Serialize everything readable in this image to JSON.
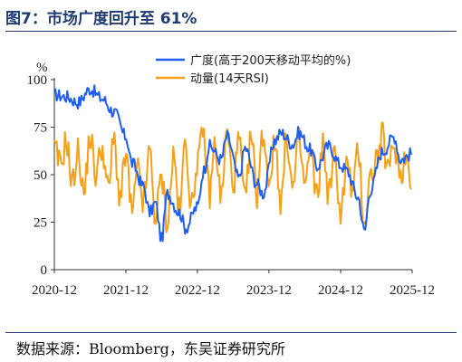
{
  "title": "图7：市场广度回升至 61%",
  "source": "数据来源：Bloomberg，东吴证券研究所",
  "chart_data": {
    "type": "line",
    "ylabel": "%",
    "ylim": [
      0,
      100
    ],
    "yticks": [
      "0",
      "25",
      "50",
      "75",
      "100"
    ],
    "xticks": [
      "2020-12",
      "2021-12",
      "2022-12",
      "2023-12",
      "2024-12",
      "2025-12"
    ],
    "colors": {
      "breadth": "#1f5ff0",
      "momentum": "#f5a01a"
    },
    "series": [
      {
        "name": "广度(高于200天移动平均的%)",
        "x": [
          "2020-12",
          "2021-02",
          "2021-04",
          "2021-06",
          "2021-08",
          "2021-10",
          "2021-12",
          "2022-01",
          "2022-03",
          "2022-04",
          "2022-05",
          "2022-06",
          "2022-07",
          "2022-09",
          "2022-10",
          "2022-12",
          "2023-01",
          "2023-02",
          "2023-04",
          "2023-05",
          "2023-07",
          "2023-08",
          "2023-10",
          "2023-11",
          "2024-01",
          "2024-02",
          "2024-04",
          "2024-05",
          "2024-07",
          "2024-08",
          "2024-10",
          "2024-12",
          "2025-01",
          "2025-03",
          "2025-04",
          "2025-05",
          "2025-07",
          "2025-09",
          "2025-10",
          "2025-12"
        ],
        "values": [
          92,
          91,
          88,
          95,
          90,
          83,
          70,
          56,
          44,
          30,
          35,
          16,
          40,
          30,
          22,
          33,
          52,
          65,
          58,
          70,
          48,
          64,
          45,
          40,
          68,
          72,
          66,
          72,
          63,
          54,
          65,
          55,
          52,
          38,
          20,
          42,
          62,
          70,
          58,
          61
        ]
      },
      {
        "name": "动量(14天RSI)",
        "x": [
          "2020-12",
          "2021-01",
          "2021-02",
          "2021-03",
          "2021-04",
          "2021-05",
          "2021-06",
          "2021-07",
          "2021-08",
          "2021-09",
          "2021-10",
          "2021-11",
          "2021-12",
          "2022-01",
          "2022-02",
          "2022-03",
          "2022-04",
          "2022-05",
          "2022-06",
          "2022-07",
          "2022-08",
          "2022-09",
          "2022-10",
          "2022-11",
          "2022-12",
          "2023-01",
          "2023-02",
          "2023-03",
          "2023-04",
          "2023-05",
          "2023-06",
          "2023-07",
          "2023-08",
          "2023-09",
          "2023-10",
          "2023-11",
          "2023-12",
          "2024-01",
          "2024-02",
          "2024-03",
          "2024-04",
          "2024-05",
          "2024-06",
          "2024-07",
          "2024-08",
          "2024-09",
          "2024-10",
          "2024-11",
          "2024-12",
          "2025-01",
          "2025-02",
          "2025-03",
          "2025-04",
          "2025-05",
          "2025-06",
          "2025-07",
          "2025-08",
          "2025-09",
          "2025-10",
          "2025-11",
          "2025-12"
        ],
        "values": [
          63,
          55,
          68,
          45,
          62,
          40,
          70,
          50,
          65,
          42,
          68,
          38,
          60,
          30,
          52,
          35,
          62,
          28,
          48,
          25,
          60,
          30,
          68,
          32,
          58,
          70,
          40,
          66,
          38,
          72,
          45,
          68,
          35,
          70,
          40,
          72,
          48,
          66,
          36,
          70,
          42,
          68,
          45,
          62,
          38,
          66,
          40,
          60,
          30,
          55,
          42,
          62,
          25,
          48,
          58,
          70,
          52,
          66,
          50,
          60,
          45
        ]
      }
    ]
  }
}
